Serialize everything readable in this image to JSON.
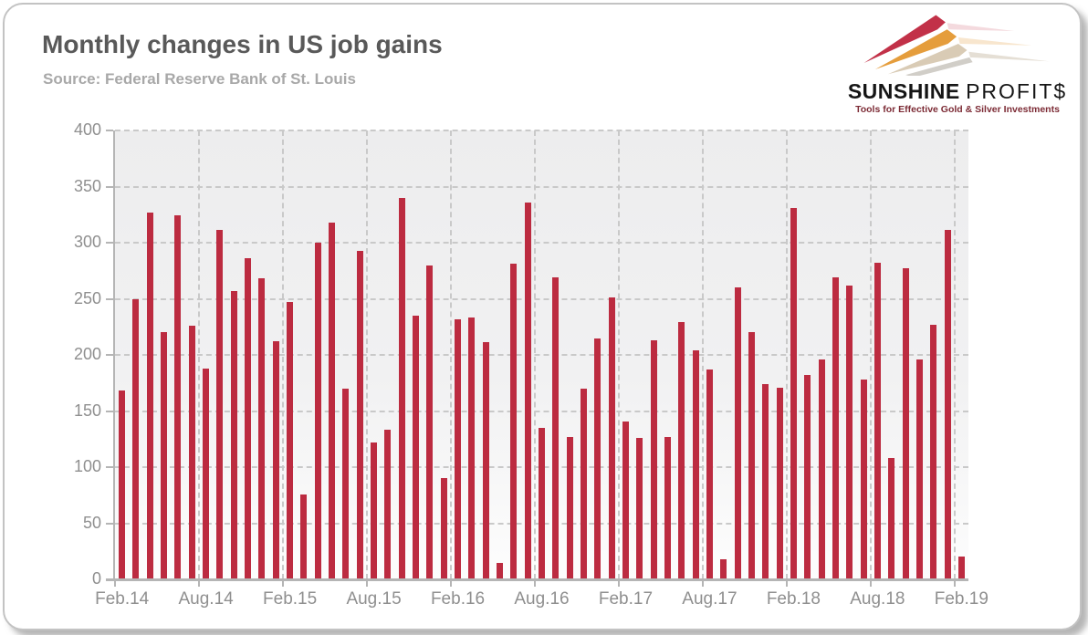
{
  "header": {
    "title": "Monthly changes in US job gains",
    "source": "Source: Federal Reserve Bank of St. Louis"
  },
  "logo": {
    "name_bold": "SUNSHINE",
    "name_light": "PROFIT$",
    "tagline": "Tools for Effective Gold & Silver Investments",
    "arrows_icon": "triple-ascending-arrows",
    "colors": {
      "red": "#c23148",
      "orange": "#e59d3c",
      "beige": "#d9cbb5",
      "shadow": "#b2ada3"
    }
  },
  "chart_data": {
    "type": "bar",
    "title": "Monthly changes in US job gains",
    "xlabel": "",
    "ylabel": "",
    "ylim": [
      0,
      400
    ],
    "yticks": [
      0,
      50,
      100,
      150,
      200,
      250,
      300,
      350,
      400
    ],
    "grid": "dashed",
    "legend": "none",
    "bar_color": "#bc2b40",
    "x_tick_labels": [
      "Feb.14",
      "Aug.14",
      "Feb.15",
      "Aug.15",
      "Feb.16",
      "Aug.16",
      "Feb.17",
      "Aug.17",
      "Feb.18",
      "Aug.18",
      "Feb.19"
    ],
    "x_tick_every": 6,
    "categories": [
      "Feb.14",
      "Mar.14",
      "Apr.14",
      "May.14",
      "Jun.14",
      "Jul.14",
      "Aug.14",
      "Sep.14",
      "Oct.14",
      "Nov.14",
      "Dec.14",
      "Jan.15",
      "Feb.15",
      "Mar.15",
      "Apr.15",
      "May.15",
      "Jun.15",
      "Jul.15",
      "Aug.15",
      "Sep.15",
      "Oct.15",
      "Nov.15",
      "Dec.15",
      "Jan.16",
      "Feb.16",
      "Mar.16",
      "Apr.16",
      "May.16",
      "Jun.16",
      "Jul.16",
      "Aug.16",
      "Sep.16",
      "Oct.16",
      "Nov.16",
      "Dec.16",
      "Jan.17",
      "Feb.17",
      "Mar.17",
      "Apr.17",
      "May.17",
      "Jun.17",
      "Jul.17",
      "Aug.17",
      "Sep.17",
      "Oct.17",
      "Nov.17",
      "Dec.17",
      "Jan.18",
      "Feb.18",
      "Mar.18",
      "Apr.18",
      "May.18",
      "Jun.18",
      "Jul.18",
      "Aug.18",
      "Sep.18",
      "Oct.18",
      "Nov.18",
      "Dec.18",
      "Jan.19",
      "Feb.19"
    ],
    "values": [
      168,
      250,
      327,
      220,
      324,
      226,
      188,
      311,
      257,
      286,
      268,
      212,
      247,
      76,
      300,
      318,
      170,
      293,
      122,
      133,
      340,
      235,
      280,
      90,
      232,
      233,
      211,
      15,
      281,
      336,
      135,
      269,
      127,
      170,
      215,
      251,
      141,
      126,
      213,
      127,
      229,
      204,
      187,
      18,
      260,
      220,
      174,
      171,
      331,
      182,
      196,
      269,
      262,
      178,
      282,
      108,
      277,
      196,
      227,
      311,
      20
    ]
  }
}
